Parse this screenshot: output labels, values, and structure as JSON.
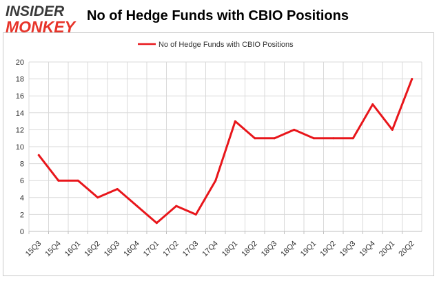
{
  "header": {
    "logo_line1": "INSIDER",
    "logo_line2": "MONKEY",
    "title": "No of Hedge Funds with CBIO Positions"
  },
  "colors": {
    "series": "#e8161b",
    "grid": "#d9d9d9",
    "axis": "#bfbfbf",
    "logo_dark": "#3a3a3a",
    "logo_red": "#e7342a"
  },
  "chart_data": {
    "type": "line",
    "title": "No of Hedge Funds with CBIO Positions",
    "xlabel": "",
    "ylabel": "",
    "ylim": [
      0,
      20
    ],
    "yticks": [
      0,
      2,
      4,
      6,
      8,
      10,
      12,
      14,
      16,
      18,
      20
    ],
    "grid": true,
    "legend_position": "top-center",
    "categories": [
      "15Q3",
      "15Q4",
      "16Q1",
      "16Q2",
      "16Q3",
      "16Q4",
      "17Q1",
      "17Q2",
      "17Q3",
      "17Q4",
      "18Q1",
      "18Q2",
      "18Q3",
      "18Q4",
      "19Q1",
      "19Q2",
      "19Q3",
      "19Q4",
      "20Q1",
      "20Q2"
    ],
    "series": [
      {
        "name": "No of Hedge Funds with CBIO Positions",
        "values": [
          9,
          6,
          6,
          4,
          5,
          3,
          1,
          3,
          2,
          6,
          13,
          11,
          11,
          12,
          11,
          11,
          11,
          15,
          12,
          18
        ]
      }
    ]
  }
}
